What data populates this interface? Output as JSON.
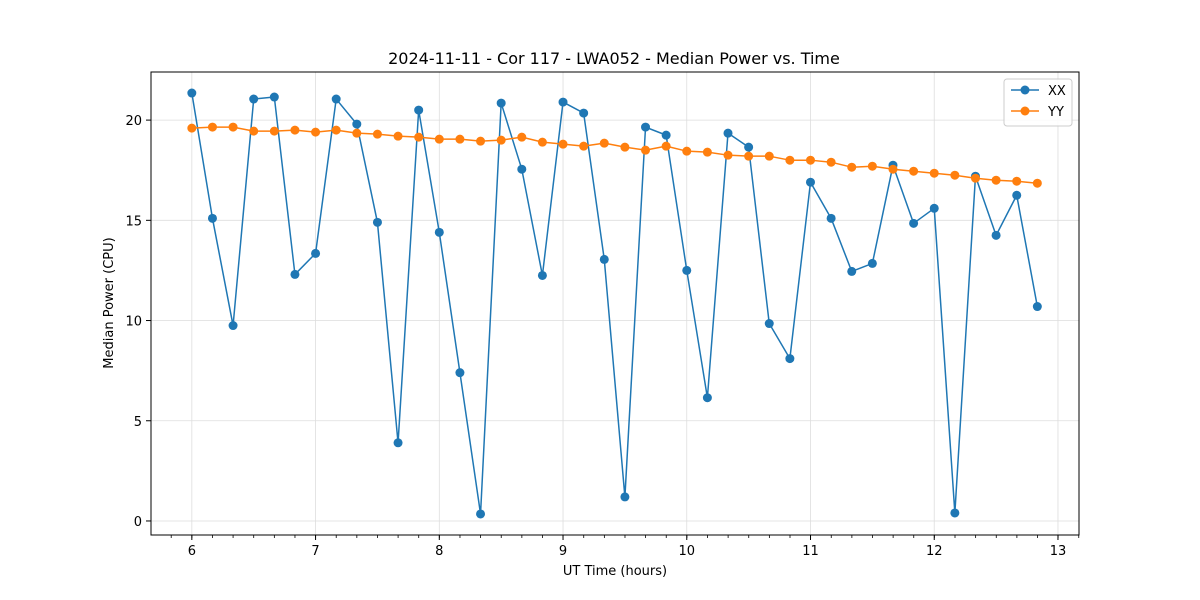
{
  "chart_data": {
    "type": "line",
    "title": "2024-11-11 - Cor 117 - LWA052 - Median Power vs. Time",
    "xlabel": "UT Time (hours)",
    "ylabel": "Median Power (CPU)",
    "xlim": [
      5.67,
      13.17
    ],
    "ylim": [
      -0.7,
      22.4
    ],
    "grid": true,
    "legend_position": "top-right",
    "x_ticks": [
      6,
      7,
      8,
      9,
      10,
      11,
      12,
      13
    ],
    "x_tick_labels": [
      "6",
      "7",
      "8",
      "9",
      "10",
      "11",
      "12",
      "13"
    ],
    "x_minor_step": 0.1667,
    "y_ticks": [
      0,
      5,
      10,
      15,
      20
    ],
    "y_tick_labels": [
      "0",
      "5",
      "10",
      "15",
      "20"
    ],
    "x": [
      6.0,
      6.1667,
      6.3333,
      6.5,
      6.6667,
      6.8333,
      7.0,
      7.1667,
      7.3333,
      7.5,
      7.6667,
      7.8333,
      8.0,
      8.1667,
      8.3333,
      8.5,
      8.6667,
      8.8333,
      9.0,
      9.1667,
      9.3333,
      9.5,
      9.6667,
      9.8333,
      10.0,
      10.1667,
      10.3333,
      10.5,
      10.6667,
      10.8333,
      11.0,
      11.1667,
      11.3333,
      11.5,
      11.6667,
      11.8333,
      12.0,
      12.1667,
      12.3333,
      12.5,
      12.6667,
      12.8333
    ],
    "series": [
      {
        "name": "XX",
        "color": "#1f77b4",
        "values": [
          21.35,
          15.1,
          9.75,
          21.05,
          21.15,
          12.3,
          13.35,
          21.05,
          19.8,
          14.9,
          3.9,
          20.5,
          14.4,
          7.4,
          0.35,
          20.85,
          17.55,
          12.25,
          20.9,
          20.35,
          13.05,
          1.2,
          19.65,
          19.25,
          12.5,
          6.15,
          19.35,
          18.65,
          9.85,
          8.1,
          16.9,
          15.1,
          12.45,
          12.85,
          17.75,
          14.85,
          15.6,
          0.4,
          17.2,
          14.25,
          16.25,
          10.7
        ]
      },
      {
        "name": "YY",
        "color": "#ff7f0e",
        "values": [
          19.6,
          19.65,
          19.65,
          19.45,
          19.45,
          19.5,
          19.4,
          19.5,
          19.35,
          19.3,
          19.2,
          19.15,
          19.05,
          19.05,
          18.95,
          19.0,
          19.15,
          18.9,
          18.8,
          18.7,
          18.85,
          18.65,
          18.5,
          18.7,
          18.45,
          18.4,
          18.25,
          18.2,
          18.2,
          18.0,
          18.0,
          17.9,
          17.65,
          17.7,
          17.55,
          17.45,
          17.35,
          17.25,
          17.1,
          17.0,
          16.95,
          16.85
        ]
      }
    ]
  }
}
